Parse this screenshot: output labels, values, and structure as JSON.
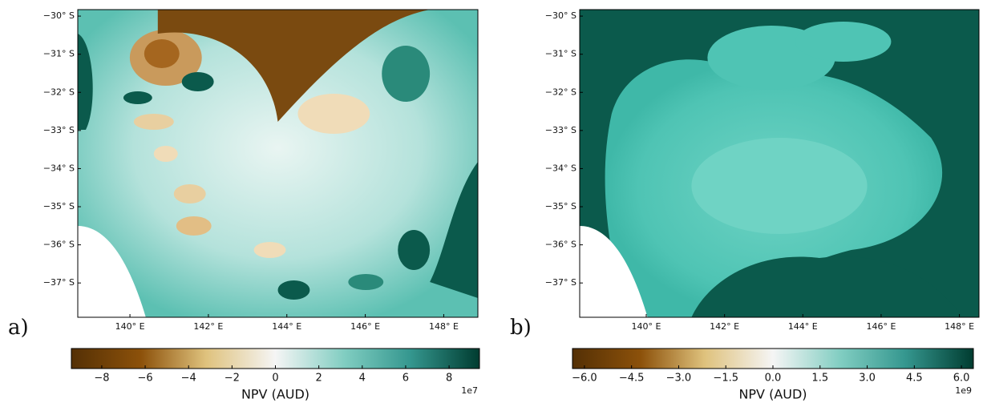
{
  "panels": [
    {
      "label": "a)",
      "lat_range": [
        -37.9,
        -29.83
      ],
      "lon_range": [
        138.67,
        148.87
      ],
      "lat_ticks": [
        {
          "value": -30,
          "label": "−30° S"
        },
        {
          "value": -31,
          "label": "−31° S"
        },
        {
          "value": -32,
          "label": "−32° S"
        },
        {
          "value": -33,
          "label": "−33° S"
        },
        {
          "value": -34,
          "label": "−34° S"
        },
        {
          "value": -35,
          "label": "−35° S"
        },
        {
          "value": -36,
          "label": "−36° S"
        },
        {
          "value": -37,
          "label": "−37° S"
        }
      ],
      "lon_ticks": [
        {
          "value": 140,
          "label": "140° E"
        },
        {
          "value": 142,
          "label": "142° E"
        },
        {
          "value": 144,
          "label": "144° E"
        },
        {
          "value": 146,
          "label": "146° E"
        },
        {
          "value": 148,
          "label": "148° E"
        }
      ],
      "colorbar": {
        "label": "NPV (AUD)",
        "scale": "1e7",
        "range": [
          -9.4,
          9.4
        ],
        "ticks": [
          {
            "value": -8,
            "label": "−8"
          },
          {
            "value": -6,
            "label": "−6"
          },
          {
            "value": -4,
            "label": "−4"
          },
          {
            "value": -2,
            "label": "−2"
          },
          0,
          2,
          4,
          6,
          8
        ]
      }
    },
    {
      "label": "b)",
      "lat_range": [
        -37.9,
        -29.83
      ],
      "lon_range": [
        138.3,
        148.5
      ],
      "lat_ticks": [
        {
          "value": -30,
          "label": "−30° S"
        },
        {
          "value": -31,
          "label": "−31° S"
        },
        {
          "value": -32,
          "label": "−32° S"
        },
        {
          "value": -33,
          "label": "−33° S"
        },
        {
          "value": -34,
          "label": "−34° S"
        },
        {
          "value": -35,
          "label": "−35° S"
        },
        {
          "value": -36,
          "label": "−36° S"
        },
        {
          "value": -37,
          "label": "−37° S"
        }
      ],
      "lon_ticks": [
        {
          "value": 140,
          "label": "140° E"
        },
        {
          "value": 142,
          "label": "142° E"
        },
        {
          "value": 144,
          "label": "144° E"
        },
        {
          "value": 146,
          "label": "146° E"
        },
        {
          "value": 148,
          "label": "148° E"
        }
      ],
      "colorbar": {
        "label": "NPV (AUD)",
        "scale": "1e9",
        "range": [
          -6.38,
          6.38
        ],
        "ticks": [
          {
            "value": -6,
            "label": "−6.0"
          },
          {
            "value": -4.5,
            "label": "−4.5"
          },
          {
            "value": -3,
            "label": "−3.0"
          },
          {
            "value": -1.5,
            "label": "−1.5"
          },
          {
            "value": 0,
            "label": "0.0"
          },
          {
            "value": 1.5,
            "label": "1.5"
          },
          {
            "value": 3,
            "label": "3.0"
          },
          {
            "value": 4.5,
            "label": "4.5"
          },
          {
            "value": 6,
            "label": "6.0"
          }
        ]
      }
    }
  ]
}
